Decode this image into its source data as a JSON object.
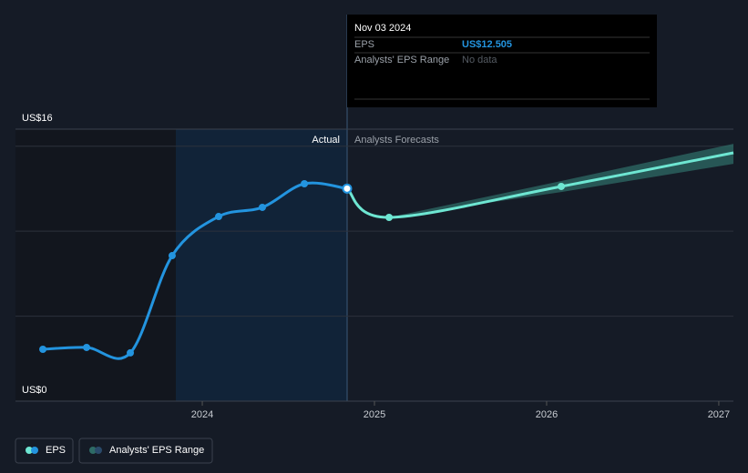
{
  "chart_data": {
    "type": "line",
    "xlim": [
      2022.915,
      2027.085
    ],
    "xticks": [
      2024,
      2025,
      2026,
      2027
    ],
    "ylim": [
      0,
      16
    ],
    "yticks": [
      {
        "value": 0,
        "label": "US$0"
      },
      {
        "value": 16,
        "label": "US$16"
      }
    ],
    "gridlines": [
      5,
      10,
      15
    ],
    "actual_label": "Actual",
    "forecast_label": "Analysts Forecasts",
    "eps": {
      "name": "EPS",
      "color": "#2394df",
      "x": [
        2023.074,
        2023.328,
        2023.582,
        2023.825,
        2024.095,
        2024.349,
        2024.593,
        2024.841
      ],
      "values": [
        3.05,
        3.16,
        2.84,
        8.56,
        10.86,
        11.4,
        12.79,
        12.505
      ]
    },
    "forecast": {
      "color": "#6ee6d2",
      "x": [
        2024.841,
        2025.085,
        2026.085,
        2027.085
      ],
      "values": [
        12.505,
        10.81,
        12.63,
        14.61
      ]
    },
    "range": {
      "name": "Analysts' EPS Range",
      "color": "#2e6b66",
      "x": [
        2025.085,
        2026.085,
        2027.085
      ],
      "low": [
        10.81,
        12.3,
        13.96
      ],
      "high": [
        10.81,
        12.95,
        15.14
      ]
    },
    "tooltip": {
      "date": "Nov 03 2024",
      "eps_label": "EPS",
      "eps_value": "US$12.505",
      "range_label": "Analysts' EPS Range",
      "range_value": "No data"
    }
  }
}
